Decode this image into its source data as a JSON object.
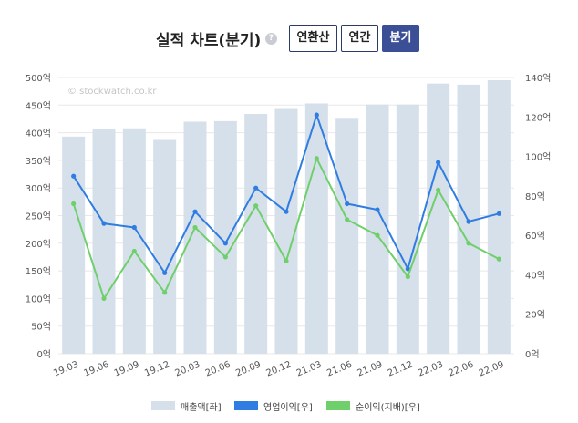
{
  "header": {
    "title": "실적 차트(분기)",
    "help_icon": "question-circle-icon",
    "buttons": [
      {
        "label": "연환산",
        "active": false
      },
      {
        "label": "연간",
        "active": false
      },
      {
        "label": "분기",
        "active": true
      }
    ]
  },
  "chart_data": {
    "type": "bar",
    "watermark": "© stockwatch.co.kr",
    "categories": [
      "19.03",
      "19.06",
      "19.09",
      "19.12",
      "20.03",
      "20.06",
      "20.09",
      "20.12",
      "21.03",
      "21.06",
      "21.09",
      "21.12",
      "22.03",
      "22.06",
      "22.09"
    ],
    "y_left": {
      "ticks": [
        "500억",
        "450억",
        "400억",
        "350억",
        "300억",
        "250억",
        "200억",
        "150억",
        "100억",
        "50억",
        "0억"
      ],
      "range": [
        0,
        500
      ]
    },
    "y_right": {
      "ticks": [
        "140억",
        "120억",
        "100억",
        "80억",
        "60억",
        "40억",
        "20억",
        "0억"
      ],
      "range": [
        0,
        140
      ]
    },
    "grid": true,
    "legend_position": "bottom",
    "series": [
      {
        "name": "매출액[좌]",
        "type": "bar",
        "axis": "left",
        "color": "#d6e0eb",
        "values": [
          393,
          406,
          408,
          387,
          420,
          421,
          434,
          443,
          453,
          427,
          451,
          451,
          489,
          487,
          495
        ]
      },
      {
        "name": "영업이익[우]",
        "type": "line",
        "axis": "right",
        "color": "#2f7de1",
        "values": [
          90,
          66,
          64,
          41,
          72,
          56,
          84,
          72,
          121,
          76,
          73,
          43,
          97,
          67,
          71
        ]
      },
      {
        "name": "순이익(지배)[우]",
        "type": "line",
        "axis": "right",
        "color": "#6fcf6a",
        "values": [
          76,
          28,
          52,
          31,
          64,
          49,
          75,
          47,
          99,
          68,
          60,
          39,
          83,
          56,
          48
        ]
      }
    ]
  }
}
